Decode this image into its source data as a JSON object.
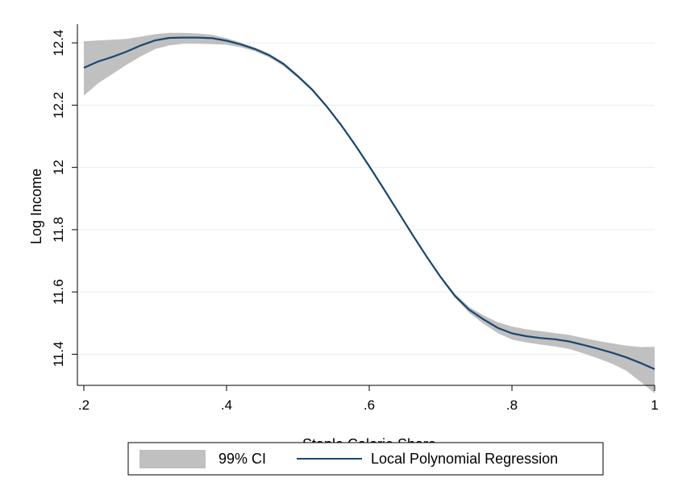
{
  "chart_data": {
    "type": "line",
    "title": "",
    "xlabel": "Staple Calorie Share",
    "ylabel": "Log Income",
    "xlim": [
      0.2,
      1.0
    ],
    "ylim": [
      11.3,
      12.46
    ],
    "grid": true,
    "legend_position": "bottom",
    "x_ticks": [
      {
        "value": 0.2,
        "label": ".2"
      },
      {
        "value": 0.4,
        "label": ".4"
      },
      {
        "value": 0.6,
        "label": ".6"
      },
      {
        "value": 0.8,
        "label": ".8"
      },
      {
        "value": 1.0,
        "label": "1"
      }
    ],
    "y_ticks": [
      {
        "value": 11.4,
        "label": "11.4"
      },
      {
        "value": 11.6,
        "label": "11.6"
      },
      {
        "value": 11.8,
        "label": "11.8"
      },
      {
        "value": 12.0,
        "label": "12"
      },
      {
        "value": 12.2,
        "label": "12.2"
      },
      {
        "value": 12.4,
        "label": "12.4"
      }
    ],
    "series": [
      {
        "name": "Local Polynomial Regression",
        "color": "#1a476f",
        "x": [
          0.2,
          0.22,
          0.24,
          0.26,
          0.28,
          0.3,
          0.32,
          0.34,
          0.36,
          0.38,
          0.4,
          0.42,
          0.44,
          0.46,
          0.48,
          0.5,
          0.52,
          0.54,
          0.56,
          0.58,
          0.6,
          0.62,
          0.64,
          0.66,
          0.68,
          0.7,
          0.72,
          0.74,
          0.76,
          0.78,
          0.8,
          0.82,
          0.84,
          0.86,
          0.88,
          0.9,
          0.92,
          0.94,
          0.96,
          0.98,
          1.0
        ],
        "y": [
          12.32,
          12.34,
          12.355,
          12.372,
          12.392,
          12.408,
          12.416,
          12.417,
          12.417,
          12.415,
          12.407,
          12.395,
          12.38,
          12.36,
          12.332,
          12.293,
          12.25,
          12.197,
          12.138,
          12.073,
          12.004,
          11.932,
          11.859,
          11.786,
          11.715,
          11.648,
          11.588,
          11.543,
          11.512,
          11.485,
          11.467,
          11.458,
          11.452,
          11.448,
          11.441,
          11.43,
          11.418,
          11.405,
          11.39,
          11.372,
          11.352
        ]
      }
    ],
    "ci_band": {
      "name": "99% CI",
      "color": "#c0c0c0",
      "x": [
        0.2,
        0.22,
        0.24,
        0.26,
        0.28,
        0.3,
        0.32,
        0.34,
        0.36,
        0.38,
        0.4,
        0.42,
        0.44,
        0.46,
        0.48,
        0.5,
        0.52,
        0.54,
        0.56,
        0.58,
        0.6,
        0.62,
        0.64,
        0.66,
        0.68,
        0.7,
        0.72,
        0.74,
        0.76,
        0.78,
        0.8,
        0.82,
        0.84,
        0.86,
        0.88,
        0.9,
        0.92,
        0.94,
        0.96,
        0.98,
        1.0
      ],
      "upper": [
        12.405,
        12.408,
        12.41,
        12.413,
        12.42,
        12.428,
        12.432,
        12.432,
        12.43,
        12.426,
        12.415,
        12.401,
        12.385,
        12.365,
        12.337,
        12.297,
        12.254,
        12.201,
        12.142,
        12.077,
        12.008,
        11.936,
        11.863,
        11.79,
        11.719,
        11.652,
        11.594,
        11.552,
        11.525,
        11.503,
        11.489,
        11.48,
        11.474,
        11.468,
        11.462,
        11.452,
        11.443,
        11.435,
        11.428,
        11.423,
        11.424
      ],
      "lower": [
        12.23,
        12.27,
        12.3,
        12.33,
        12.357,
        12.38,
        12.392,
        12.397,
        12.397,
        12.396,
        12.394,
        12.386,
        12.373,
        12.353,
        12.325,
        12.287,
        12.244,
        12.192,
        12.133,
        12.068,
        11.999,
        11.927,
        11.854,
        11.781,
        11.71,
        11.643,
        11.581,
        11.533,
        11.498,
        11.468,
        11.447,
        11.438,
        11.431,
        11.425,
        11.417,
        11.403,
        11.387,
        11.37,
        11.347,
        11.312,
        11.275
      ]
    }
  }
}
